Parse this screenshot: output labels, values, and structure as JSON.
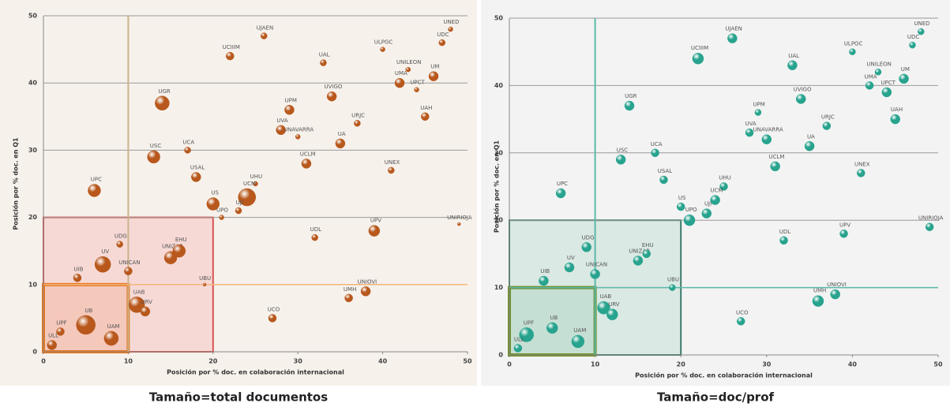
{
  "chart_data": [
    {
      "type": "scatter",
      "caption": "Tamaño=total documentos",
      "xlabel": "Posición por % doc. en colaboración internacional",
      "ylabel": "Posición por % doc. en Q1",
      "xlim": [
        0,
        50
      ],
      "ylim": [
        0,
        50
      ],
      "xticks": [
        0,
        10,
        20,
        30,
        40,
        50
      ],
      "yticks": [
        0,
        10,
        20,
        30,
        40,
        50
      ],
      "grid": true,
      "color": "#b8581c",
      "ref_lines": [
        {
          "axis": "x",
          "value": 10,
          "color": "#c9b48c"
        },
        {
          "axis": "y",
          "value": 10,
          "color": "#f2b57a"
        }
      ],
      "regions": [
        {
          "xlim": [
            0,
            20
          ],
          "ylim": [
            0,
            20
          ],
          "color": "#d9534f",
          "fill": "#f6d3cf"
        },
        {
          "xlim": [
            0,
            10
          ],
          "ylim": [
            0,
            10
          ],
          "color": "#e8761c",
          "fill": "#f4c3b4"
        }
      ],
      "labels": [
        "UNED",
        "UDC",
        "UM",
        "UNILEON",
        "UPCT",
        "UMA",
        "ULPGC",
        "UAH",
        "UNEX",
        "UNIRIOJA",
        "UPV",
        "UNIOVI",
        "UMH",
        "UCO",
        "UDL",
        "UJAEN",
        "UCIIIM",
        "UAL",
        "UVIGO",
        "UPM",
        "URJC",
        "UVA",
        "UNAVARRA",
        "UA",
        "UCLM",
        "UGR",
        "UCA",
        "USC",
        "USAL",
        "UPC",
        "UHU",
        "UCM",
        "UJI",
        "US",
        "UPO",
        "UDG",
        "UV",
        "UIB",
        "UNICAN",
        "UNIZAR",
        "EHU",
        "UBU",
        "UAB",
        "URV",
        "UB",
        "UAM",
        "UPF",
        "ULL"
      ],
      "x": [
        48,
        47,
        46,
        43,
        44,
        42,
        40,
        45,
        41,
        49,
        39,
        38,
        36,
        27,
        32,
        26,
        22,
        33,
        34,
        29,
        37,
        28,
        30,
        35,
        31,
        14,
        17,
        13,
        18,
        6,
        25,
        24,
        23,
        20,
        21,
        9,
        7,
        4,
        10,
        15,
        16,
        19,
        11,
        12,
        5,
        8,
        2,
        1
      ],
      "y": [
        48,
        46,
        41,
        42,
        39,
        40,
        45,
        35,
        27,
        19,
        18,
        9,
        8,
        5,
        17,
        47,
        44,
        43,
        38,
        36,
        34,
        33,
        32,
        31,
        28,
        37,
        30,
        29,
        26,
        24,
        25,
        23,
        21,
        22,
        20,
        16,
        13,
        11,
        12,
        14,
        15,
        10,
        7,
        6,
        4,
        2,
        3,
        1
      ],
      "sizes": [
        3,
        4,
        6,
        3,
        3,
        6,
        3,
        5,
        4,
        2,
        7,
        6,
        5,
        5,
        4,
        4,
        5,
        4,
        6,
        6,
        4,
        6,
        3,
        6,
        6,
        9,
        4,
        8,
        6,
        8,
        3,
        11,
        4,
        8,
        3,
        4,
        10,
        5,
        5,
        8,
        8,
        2,
        10,
        6,
        12,
        9,
        5,
        6
      ]
    },
    {
      "type": "scatter",
      "caption": "Tamaño=doc/prof",
      "xlabel": "Posición por % doc. en colaboración internacional",
      "ylabel": "Posición por % doc. en Q1",
      "xlim": [
        0,
        50
      ],
      "ylim": [
        0,
        50
      ],
      "xticks": [
        0,
        10,
        20,
        30,
        40,
        50
      ],
      "yticks": [
        0,
        10,
        20,
        30,
        40,
        50
      ],
      "grid": true,
      "color": "#27a38e",
      "ref_lines": [
        {
          "axis": "x",
          "value": 10,
          "color": "#5bb9a8"
        },
        {
          "axis": "y",
          "value": 10,
          "color": "#5bb9a8"
        }
      ],
      "regions": [
        {
          "xlim": [
            0,
            20
          ],
          "ylim": [
            0,
            20
          ],
          "color": "#3d7b6b",
          "fill": "#d3e6de"
        },
        {
          "xlim": [
            0,
            10
          ],
          "ylim": [
            0,
            10
          ],
          "color": "#6f8f2a",
          "fill": "#c1dccf"
        }
      ],
      "labels": [
        "UNED",
        "UDC",
        "UM",
        "UNILEON",
        "UPCT",
        "UMA",
        "ULPGC",
        "UAH",
        "UNEX",
        "UNIRIOJA",
        "UPV",
        "UNIOVI",
        "UMH",
        "UCO",
        "UDL",
        "UJAEN",
        "UCIIIM",
        "UAL",
        "UVIGO",
        "UPM",
        "URJC",
        "UVA",
        "UNAVARRA",
        "UA",
        "UCLM",
        "UGR",
        "UCA",
        "USC",
        "USAL",
        "UPC",
        "UHU",
        "UCM",
        "UJI",
        "US",
        "UPO",
        "UDG",
        "UV",
        "UIB",
        "UNICAN",
        "UNIZAR",
        "EHU",
        "UBU",
        "UAB",
        "URV",
        "UB",
        "UAM",
        "UPF",
        "ULL"
      ],
      "x": [
        48,
        47,
        46,
        43,
        44,
        42,
        40,
        45,
        41,
        49,
        39,
        38,
        36,
        27,
        32,
        26,
        22,
        33,
        34,
        29,
        37,
        28,
        30,
        35,
        31,
        14,
        17,
        13,
        18,
        6,
        25,
        24,
        23,
        20,
        21,
        9,
        7,
        4,
        10,
        15,
        16,
        19,
        11,
        12,
        5,
        8,
        2,
        1
      ],
      "y": [
        48,
        46,
        41,
        42,
        39,
        40,
        45,
        35,
        27,
        19,
        18,
        9,
        8,
        5,
        17,
        47,
        44,
        43,
        38,
        36,
        34,
        33,
        32,
        31,
        28,
        37,
        30,
        29,
        26,
        24,
        25,
        23,
        21,
        22,
        20,
        16,
        13,
        11,
        12,
        14,
        15,
        10,
        7,
        6,
        4,
        2,
        3,
        1
      ],
      "sizes": [
        4,
        4,
        6,
        4,
        6,
        5,
        4,
        6,
        5,
        5,
        5,
        6,
        7,
        5,
        5,
        6,
        7,
        6,
        6,
        4,
        5,
        5,
        6,
        6,
        6,
        6,
        5,
        6,
        5,
        6,
        5,
        6,
        6,
        5,
        7,
        6,
        6,
        6,
        6,
        6,
        5,
        4,
        8,
        7,
        7,
        8,
        9,
        5
      ]
    }
  ]
}
